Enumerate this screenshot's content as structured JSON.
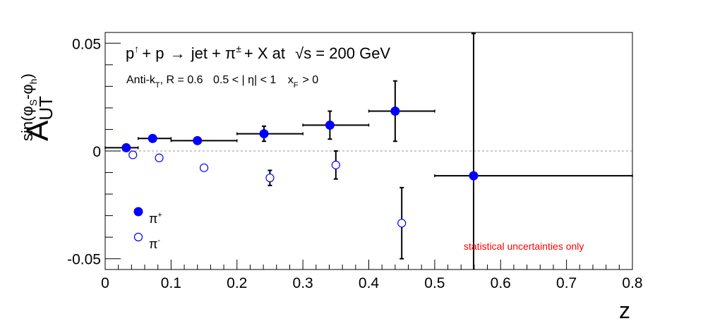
{
  "chart_data": {
    "type": "scatter",
    "title": "p↑ + p → jet + π± + X at √s = 200 GeV",
    "title_parts": {
      "p": "p",
      "up_arrow": "↑",
      "plus1": "+ p",
      "arrow": "→",
      "jet": "jet + π",
      "pm": "±",
      "rest": "+ X at",
      "sqrt": "√",
      "s": "s = 200 GeV"
    },
    "subtitle_parts": {
      "antik": "Anti-k",
      "t": "T",
      "r": ", R = 0.6",
      "eta": "0.5 < | η| < 1",
      "x": "x",
      "f": "F",
      "gt": "> 0"
    },
    "xlabel": "z",
    "ylabel_parts": {
      "a": "A",
      "sub": "UT",
      "sup": "sin(φ",
      "sup_s": "S",
      "sup_mid": "-φ",
      "sup_h": "h",
      "sup_end": ")"
    },
    "xlim": [
      0,
      0.8
    ],
    "ylim": [
      -0.055,
      0.055
    ],
    "x_ticks": [
      {
        "value": 0,
        "label": "0"
      },
      {
        "value": 0.1,
        "label": "0.1"
      },
      {
        "value": 0.2,
        "label": "0.2"
      },
      {
        "value": 0.3,
        "label": "0.3"
      },
      {
        "value": 0.4,
        "label": "0.4"
      },
      {
        "value": 0.5,
        "label": "0.5"
      },
      {
        "value": 0.6,
        "label": "0.6"
      },
      {
        "value": 0.7,
        "label": "0.7"
      },
      {
        "value": 0.8,
        "label": "0.8"
      }
    ],
    "y_ticks": [
      {
        "value": -0.05,
        "label": "-0.05"
      },
      {
        "value": 0,
        "label": "0"
      },
      {
        "value": 0.05,
        "label": "0.05"
      }
    ],
    "zero_line": true,
    "series": [
      {
        "name": "π+",
        "legend_base": "π",
        "legend_sup": "+",
        "color": "#0000ff",
        "filled": true,
        "points": [
          {
            "x": 0.032,
            "y": 0.0015,
            "xerr": [
              0.032,
              0.018
            ],
            "yerr": 0.0005
          },
          {
            "x": 0.072,
            "y": 0.0058,
            "xerr": [
              0.022,
              0.028
            ],
            "yerr": 0.0012
          },
          {
            "x": 0.14,
            "y": 0.0048,
            "xerr": [
              0.04,
              0.06
            ],
            "yerr": 0.0015
          },
          {
            "x": 0.241,
            "y": 0.008,
            "xerr": [
              0.041,
              0.059
            ],
            "yerr": 0.0035
          },
          {
            "x": 0.341,
            "y": 0.012,
            "xerr": [
              0.041,
              0.059
            ],
            "yerr": 0.0065
          },
          {
            "x": 0.44,
            "y": 0.0185,
            "xerr": [
              0.04,
              0.06
            ],
            "yerr": 0.014
          },
          {
            "x": 0.559,
            "y": -0.0115,
            "xerr": [
              0.059,
              0.241
            ],
            "yerr": 0.066
          }
        ]
      },
      {
        "name": "π-",
        "legend_base": "π",
        "legend_sup": "-",
        "color": "#0000ff",
        "filled": false,
        "points": [
          {
            "x": 0.042,
            "y": -0.0018,
            "yerr": 0.0005
          },
          {
            "x": 0.082,
            "y": -0.0032,
            "yerr": 0.0008
          },
          {
            "x": 0.15,
            "y": -0.0078,
            "yerr": 0.0012
          },
          {
            "x": 0.25,
            "y": -0.0125,
            "yerr": 0.0035
          },
          {
            "x": 0.35,
            "y": -0.0065,
            "yerr": 0.0065
          },
          {
            "x": 0.45,
            "y": -0.0335,
            "yerr": 0.0165
          }
        ]
      }
    ],
    "legend_position": "lower-left",
    "annotation": "statistical uncertainties only",
    "annotation_color": "#ff0000"
  }
}
